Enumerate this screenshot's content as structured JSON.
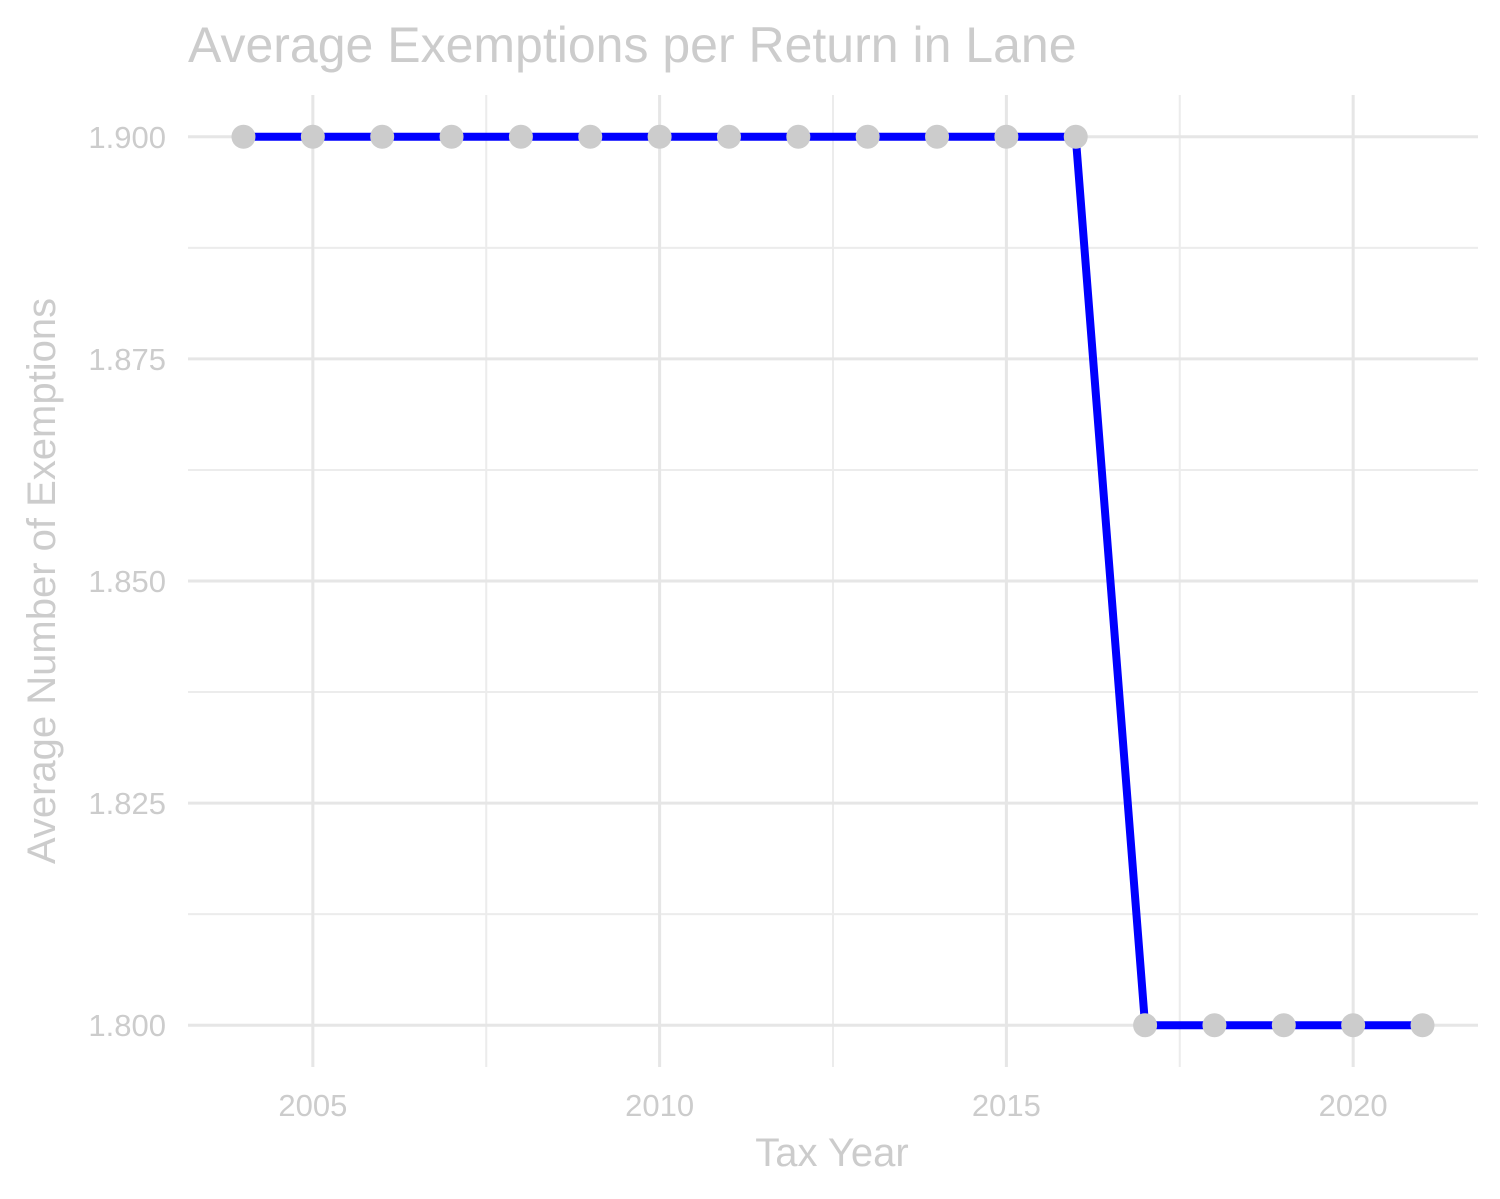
{
  "chart_data": {
    "type": "line",
    "title": "Average Exemptions per Return in Lane",
    "xlabel": "Tax Year",
    "ylabel": "Average Number of Exemptions",
    "xlim": [
      2003.2,
      2021.8
    ],
    "ylim": [
      1.7953,
      1.9047
    ],
    "x_ticks": [
      2005,
      2010,
      2015,
      2020
    ],
    "x_tick_labels": [
      "2005",
      "2010",
      "2015",
      "2020"
    ],
    "y_ticks": [
      1.8,
      1.825,
      1.85,
      1.875,
      1.9
    ],
    "y_tick_labels": [
      "1.800",
      "1.825",
      "1.850",
      "1.875",
      "1.900"
    ],
    "grid": true,
    "legend": "none",
    "line_color": "#0000ff",
    "point_color": "#cccccc",
    "series": [
      {
        "x": [
          2004,
          2005,
          2006,
          2007,
          2008,
          2009,
          2010,
          2011,
          2012,
          2013,
          2014,
          2015,
          2016,
          2017,
          2018,
          2019,
          2020,
          2021
        ],
        "values": [
          1.9,
          1.9,
          1.9,
          1.9,
          1.9,
          1.9,
          1.9,
          1.9,
          1.9,
          1.9,
          1.9,
          1.9,
          1.9,
          1.8,
          1.8,
          1.8,
          1.8,
          1.8
        ]
      }
    ]
  }
}
